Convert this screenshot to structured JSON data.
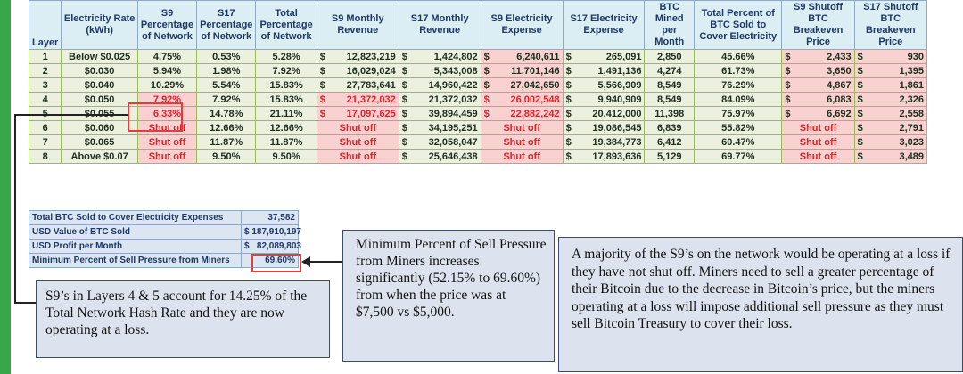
{
  "main_table": {
    "headers": [
      "Layer",
      "Electricity Rate (kWh)",
      "S9 Percentage of Network",
      "S17 Percentage of Network",
      "Total Percentage of Network",
      "S9 Monthly Revenue",
      "S17 Monthly Revenue",
      "S9 Electricity Expense",
      "S17 Electricity Expense",
      "BTC Mined per Month",
      "Total Percent of BTC Sold to Cover Electricity",
      "S9 Shutoff BTC Breakeven Price",
      "S17 Shutoff BTC Breakeven Price"
    ],
    "rows": [
      {
        "layer": "1",
        "rate": "Below $0.025",
        "s9_pct": "4.75%",
        "s17_pct": "0.53%",
        "total_pct": "5.28%",
        "s9_rev": "12,823,219",
        "s17_rev": "1,424,802",
        "s9_exp": "6,240,611",
        "s17_exp": "265,091",
        "btc": "2,850",
        "sold_pct": "45.66%",
        "s9_be": "2,433",
        "s17_be": "930"
      },
      {
        "layer": "2",
        "rate": "$0.030",
        "s9_pct": "5.94%",
        "s17_pct": "1.98%",
        "total_pct": "7.92%",
        "s9_rev": "16,029,024",
        "s17_rev": "5,343,008",
        "s9_exp": "11,701,146",
        "s17_exp": "1,491,136",
        "btc": "4,274",
        "sold_pct": "61.73%",
        "s9_be": "3,650",
        "s17_be": "1,395"
      },
      {
        "layer": "3",
        "rate": "$0.040",
        "s9_pct": "10.29%",
        "s17_pct": "5.54%",
        "total_pct": "15.83%",
        "s9_rev": "27,783,641",
        "s17_rev": "14,960,422",
        "s9_exp": "27,042,650",
        "s17_exp": "5,566,909",
        "btc": "8,549",
        "sold_pct": "76.29%",
        "s9_be": "4,867",
        "s17_be": "1,861"
      },
      {
        "layer": "4",
        "rate": "$0.050",
        "s9_pct": "7.92%",
        "s17_pct": "7.92%",
        "total_pct": "15.83%",
        "s9_rev": "21,372,032",
        "s17_rev": "21,372,032",
        "s9_exp": "26,002,548",
        "s17_exp": "9,940,909",
        "btc": "8,549",
        "sold_pct": "84.09%",
        "s9_be": "6,083",
        "s17_be": "2,326"
      },
      {
        "layer": "5",
        "rate": "$0.055",
        "s9_pct": "6.33%",
        "s17_pct": "14.78%",
        "total_pct": "21.11%",
        "s9_rev": "17,097,625",
        "s17_rev": "39,894,459",
        "s9_exp": "22,882,242",
        "s17_exp": "20,412,000",
        "btc": "11,398",
        "sold_pct": "75.97%",
        "s9_be": "6,692",
        "s17_be": "2,558"
      },
      {
        "layer": "6",
        "rate": "$0.060",
        "s9_pct": "Shut off",
        "s17_pct": "12.66%",
        "total_pct": "12.66%",
        "s9_rev": "Shut off",
        "s17_rev": "34,195,251",
        "s9_exp": "Shut off",
        "s17_exp": "19,086,545",
        "btc": "6,839",
        "sold_pct": "55.82%",
        "s9_be": "Shut off",
        "s17_be": "2,791"
      },
      {
        "layer": "7",
        "rate": "$0.065",
        "s9_pct": "Shut off",
        "s17_pct": "11.87%",
        "total_pct": "11.87%",
        "s9_rev": "Shut off",
        "s17_rev": "32,058,047",
        "s9_exp": "Shut off",
        "s17_exp": "19,384,773",
        "btc": "6,412",
        "sold_pct": "60.47%",
        "s9_be": "Shut off",
        "s17_be": "3,023"
      },
      {
        "layer": "8",
        "rate": "Above $0.07",
        "s9_pct": "Shut off",
        "s17_pct": "9.50%",
        "total_pct": "9.50%",
        "s9_rev": "Shut off",
        "s17_rev": "25,646,438",
        "s9_exp": "Shut off",
        "s17_exp": "17,893,636",
        "btc": "5,129",
        "sold_pct": "69.77%",
        "s9_be": "Shut off",
        "s17_be": "3,489"
      }
    ],
    "currency_symbol": "$"
  },
  "summary": {
    "rows": [
      {
        "label": "Total BTC Sold to Cover Electricity Expenses",
        "value": "37,582"
      },
      {
        "label": "USD Value of BTC Sold",
        "value": "$ 187,910,197"
      },
      {
        "label": "USD Profit per Month",
        "value": "$   82,089,803"
      },
      {
        "label": "Minimum Percent of Sell Pressure from Miners",
        "value": "69.60%"
      }
    ]
  },
  "callouts": {
    "layers": "S9’s in Layers 4 & 5 account for 14.25% of the Total Network Hash Rate and they are now operating at a loss.",
    "sell_pressure": "Minimum Percent of Sell Pressure from Miners increases significantly (52.15% to 69.60%) from when the price was at $7,500 vs $5,000.",
    "majority": "A majority of the S9’s on the network would be operating at a loss if they have not shut off. Miners need to sell a greater percentage of their Bitcoin due to the decrease in Bitcoin’s price, but the miners operating at a loss will impose additional sell pressure as they must sell Bitcoin Treasury to cover their loss."
  },
  "colors": {
    "accent_green": "#3aa64a",
    "header_bg": "#daeef3",
    "cell_green": "#ebf1de",
    "cell_pink": "#f9d1d1",
    "loss_red": "#d8242e",
    "callout_bg": "#dce3ef"
  }
}
